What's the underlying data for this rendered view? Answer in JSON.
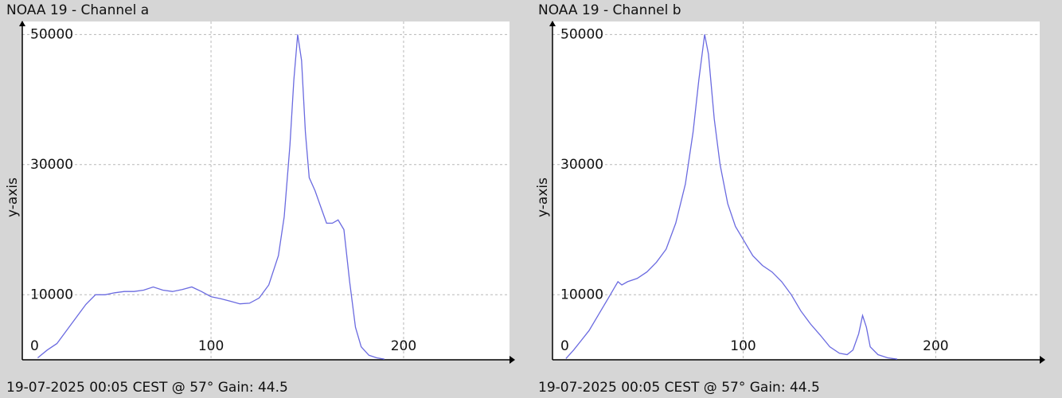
{
  "chart_data": [
    {
      "type": "line",
      "title": "NOAA 19 - Channel a",
      "y_label": "y-axis",
      "footer": "19-07-2025 00:05 CEST @ 57° Gain: 44.5",
      "color": "#6a6ae0",
      "grid": true,
      "xlim": [
        2,
        255
      ],
      "ylim": [
        0,
        52000
      ],
      "xticks": [
        100,
        200
      ],
      "yticks": [
        0,
        10000,
        30000,
        50000
      ],
      "x": [
        10,
        15,
        20,
        25,
        30,
        35,
        40,
        45,
        50,
        55,
        60,
        65,
        70,
        75,
        80,
        85,
        90,
        95,
        100,
        105,
        110,
        115,
        120,
        125,
        130,
        135,
        138,
        141,
        143,
        145,
        147,
        149,
        151,
        154,
        157,
        160,
        163,
        166,
        169,
        172,
        175,
        178,
        182,
        186,
        190
      ],
      "values": [
        300,
        1500,
        2500,
        4500,
        6500,
        8500,
        10000,
        10000,
        10300,
        10500,
        10500,
        10700,
        11200,
        10700,
        10500,
        10800,
        11200,
        10500,
        9700,
        9400,
        9000,
        8600,
        8700,
        9500,
        11500,
        16000,
        22000,
        33000,
        43000,
        50000,
        46000,
        35000,
        28000,
        26000,
        23500,
        21000,
        21000,
        21500,
        20000,
        12000,
        5000,
        2000,
        700,
        300,
        100
      ]
    },
    {
      "type": "line",
      "title": "NOAA 19 - Channel b",
      "y_label": "y-axis",
      "footer": "19-07-2025 00:05 CEST @ 57° Gain: 44.5",
      "color": "#6a6ae0",
      "grid": true,
      "xlim": [
        1,
        254
      ],
      "ylim": [
        0,
        52000
      ],
      "xticks": [
        100,
        200
      ],
      "yticks": [
        0,
        10000,
        30000,
        50000
      ],
      "x": [
        8,
        12,
        16,
        20,
        25,
        30,
        33,
        35,
        37,
        40,
        45,
        50,
        55,
        60,
        65,
        70,
        74,
        77,
        80,
        82,
        85,
        88,
        92,
        96,
        100,
        105,
        110,
        115,
        120,
        125,
        130,
        135,
        140,
        145,
        150,
        154,
        157,
        160,
        162,
        164,
        166,
        170,
        175,
        180
      ],
      "values": [
        200,
        1500,
        3000,
        4500,
        7000,
        9500,
        11000,
        12000,
        11500,
        12000,
        12500,
        13500,
        15000,
        17000,
        21000,
        27000,
        35000,
        43000,
        50000,
        47000,
        37000,
        30000,
        24000,
        20500,
        18500,
        16000,
        14500,
        13500,
        12000,
        10000,
        7500,
        5500,
        3800,
        2000,
        1000,
        800,
        1500,
        4000,
        6800,
        5000,
        2000,
        800,
        300,
        100
      ]
    }
  ]
}
